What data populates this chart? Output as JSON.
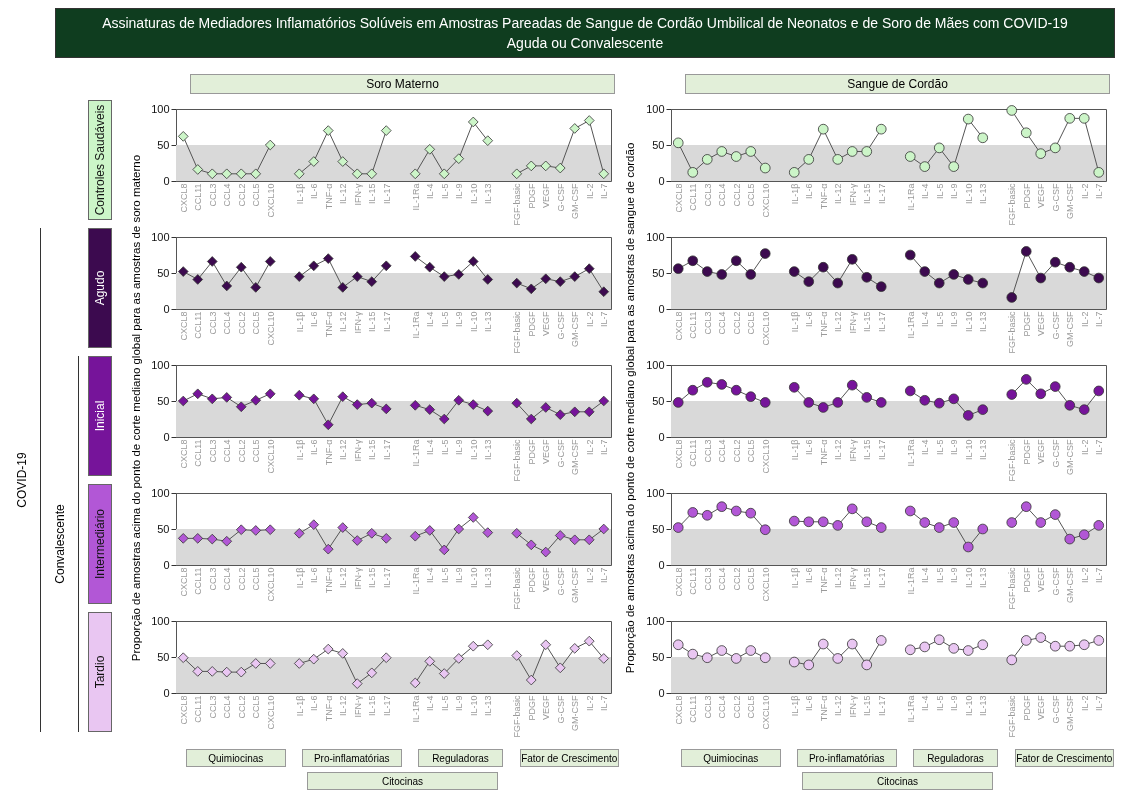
{
  "chart_data": [
    {
      "type": "line",
      "title": "Assinaturas de Mediadores Inflamatórios Solúveis em Amostras Pareadas de Sangue de Cordão Umbilical de Neonatos e de Soro de Mães com COVID-19 Aguda ou Convalescente",
      "subtitle": "Soro Materno",
      "annotations": [
        "Controles Saudáveis"
      ],
      "marker": "diamond",
      "ylim": [
        0,
        100
      ],
      "yticks": [
        0,
        50,
        100
      ],
      "bands": [
        {
          "axis": "y",
          "from": 0,
          "to": 50,
          "color": "#d9d9d9"
        }
      ],
      "categories": [
        "CXCL8",
        "CCL11",
        "CCL3",
        "CCL4",
        "CCL2",
        "CCL5",
        "CXCL10",
        null,
        "IL-1β",
        "IL-6",
        "TNF-α",
        "IL-12",
        "IFN-γ",
        "IL-15",
        "IL-17",
        null,
        "IL-1Ra",
        "IL-4",
        "IL-5",
        "IL-9",
        "IL-10",
        "IL-13",
        null,
        "FGF-basic",
        "PDGF",
        "VEGF",
        "G-CSF",
        "GM-CSF",
        "IL-2",
        "IL-7"
      ],
      "series": [
        {
          "color": "#ccf5c8",
          "values": [
            62,
            16,
            10,
            10,
            10,
            10,
            50,
            null,
            10,
            27,
            70,
            27,
            10,
            10,
            70,
            null,
            10,
            44,
            10,
            31,
            82,
            56,
            null,
            10,
            21,
            21,
            18,
            73,
            84,
            10
          ]
        }
      ]
    },
    {
      "type": "line",
      "subtitle": "Sangue de Cordão",
      "marker": "circle",
      "ylim": [
        0,
        100
      ],
      "yticks": [
        0,
        50,
        100
      ],
      "bands": [
        {
          "axis": "y",
          "from": 0,
          "to": 50,
          "color": "#d9d9d9"
        }
      ],
      "categories": [
        "CXCL8",
        "CCL11",
        "CCL3",
        "CCL4",
        "CCL2",
        "CCL5",
        "CXCL10",
        null,
        "IL-1β",
        "IL-6",
        "TNF-α",
        "IL-12",
        "IFN-γ",
        "IL-15",
        "IL-17",
        null,
        "IL-1Ra",
        "IL-4",
        "IL-5",
        "IL-9",
        "IL-10",
        "IL-13",
        null,
        "FGF-basic",
        "PDGF",
        "VEGF",
        "G-CSF",
        "GM-CSF",
        "IL-2",
        "IL-7"
      ],
      "series": [
        {
          "color": "#ccf5c8",
          "values": [
            53,
            12,
            30,
            41,
            34,
            41,
            18,
            null,
            12,
            30,
            72,
            30,
            41,
            41,
            72,
            null,
            34,
            20,
            46,
            20,
            86,
            60,
            null,
            98,
            67,
            38,
            46,
            87,
            87,
            12
          ]
        }
      ]
    },
    {
      "type": "line",
      "annotations": [
        "Agudo",
        "COVID-19"
      ],
      "marker": "diamond",
      "ylim": [
        0,
        100
      ],
      "yticks": [
        0,
        50,
        100
      ],
      "bands": [
        {
          "axis": "y",
          "from": 0,
          "to": 50,
          "color": "#d9d9d9"
        }
      ],
      "categories": [
        "CXCL8",
        "CCL11",
        "CCL3",
        "CCL4",
        "CCL2",
        "CCL5",
        "CXCL10",
        null,
        "IL-1β",
        "IL-6",
        "TNF-α",
        "IL-12",
        "IFN-γ",
        "IL-15",
        "IL-17",
        null,
        "IL-1Ra",
        "IL-4",
        "IL-5",
        "IL-9",
        "IL-10",
        "IL-13",
        null,
        "FGF-basic",
        "PDGF",
        "VEGF",
        "G-CSF",
        "GM-CSF",
        "IL-2",
        "IL-7"
      ],
      "series": [
        {
          "color": "#3c0a4f",
          "values": [
            52,
            41,
            66,
            32,
            58,
            30,
            66,
            null,
            45,
            60,
            70,
            30,
            45,
            38,
            60,
            null,
            73,
            58,
            45,
            48,
            66,
            41,
            null,
            36,
            28,
            42,
            38,
            45,
            56,
            24
          ]
        }
      ]
    },
    {
      "type": "line",
      "marker": "circle",
      "ylim": [
        0,
        100
      ],
      "yticks": [
        0,
        50,
        100
      ],
      "bands": [
        {
          "axis": "y",
          "from": 0,
          "to": 50,
          "color": "#d9d9d9"
        }
      ],
      "categories": [
        "CXCL8",
        "CCL11",
        "CCL3",
        "CCL4",
        "CCL2",
        "CCL5",
        "CXCL10",
        null,
        "IL-1β",
        "IL-6",
        "TNF-α",
        "IL-12",
        "IFN-γ",
        "IL-15",
        "IL-17",
        null,
        "IL-1Ra",
        "IL-4",
        "IL-5",
        "IL-9",
        "IL-10",
        "IL-13",
        null,
        "FGF-basic",
        "PDGF",
        "VEGF",
        "G-CSF",
        "GM-CSF",
        "IL-2",
        "IL-7"
      ],
      "series": [
        {
          "color": "#3c0a4f",
          "values": [
            56,
            67,
            52,
            48,
            67,
            48,
            77,
            null,
            52,
            38,
            58,
            36,
            69,
            44,
            31,
            null,
            75,
            52,
            36,
            48,
            41,
            36,
            null,
            16,
            80,
            43,
            65,
            58,
            52,
            43
          ]
        }
      ]
    },
    {
      "type": "line",
      "annotations": [
        "Inicial",
        "Convalescente"
      ],
      "ylabel": "Proporção de amostras acima do ponto de corte mediano global para as amostras de soro materno",
      "marker": "diamond",
      "ylim": [
        0,
        100
      ],
      "yticks": [
        0,
        50,
        100
      ],
      "bands": [
        {
          "axis": "y",
          "from": 0,
          "to": 50,
          "color": "#d9d9d9"
        }
      ],
      "categories": [
        "CXCL8",
        "CCL11",
        "CCL3",
        "CCL4",
        "CCL2",
        "CCL5",
        "CXCL10",
        null,
        "IL-1β",
        "IL-6",
        "TNF-α",
        "IL-12",
        "IFN-γ",
        "IL-15",
        "IL-17",
        null,
        "IL-1Ra",
        "IL-4",
        "IL-5",
        "IL-9",
        "IL-10",
        "IL-13",
        null,
        "FGF-basic",
        "PDGF",
        "VEGF",
        "G-CSF",
        "GM-CSF",
        "IL-2",
        "IL-7"
      ],
      "series": [
        {
          "color": "#76149a",
          "values": [
            50,
            60,
            53,
            55,
            42,
            51,
            60,
            null,
            58,
            53,
            17,
            56,
            45,
            47,
            39,
            null,
            44,
            38,
            25,
            51,
            45,
            36,
            null,
            47,
            25,
            41,
            31,
            35,
            35,
            50
          ]
        }
      ]
    },
    {
      "type": "line",
      "ylabel": "Proporção de amostras acima do ponto de corte mediano global para as amostras de sangue de cordão",
      "marker": "circle",
      "ylim": [
        0,
        100
      ],
      "yticks": [
        0,
        50,
        100
      ],
      "bands": [
        {
          "axis": "y",
          "from": 0,
          "to": 50,
          "color": "#d9d9d9"
        }
      ],
      "categories": [
        "CXCL8",
        "CCL11",
        "CCL3",
        "CCL4",
        "CCL2",
        "CCL5",
        "CXCL10",
        null,
        "IL-1β",
        "IL-6",
        "TNF-α",
        "IL-12",
        "IFN-γ",
        "IL-15",
        "IL-17",
        null,
        "IL-1Ra",
        "IL-4",
        "IL-5",
        "IL-9",
        "IL-10",
        "IL-13",
        null,
        "FGF-basic",
        "PDGF",
        "VEGF",
        "G-CSF",
        "GM-CSF",
        "IL-2",
        "IL-7"
      ],
      "series": [
        {
          "color": "#76149a",
          "values": [
            48,
            65,
            76,
            73,
            65,
            56,
            48,
            null,
            69,
            48,
            41,
            48,
            72,
            55,
            48,
            null,
            64,
            51,
            47,
            53,
            30,
            38,
            null,
            59,
            80,
            60,
            70,
            44,
            38,
            64
          ]
        }
      ]
    },
    {
      "type": "line",
      "annotations": [
        "Intermediário"
      ],
      "marker": "diamond",
      "ylim": [
        0,
        100
      ],
      "yticks": [
        0,
        50,
        100
      ],
      "bands": [
        {
          "axis": "y",
          "from": 0,
          "to": 50,
          "color": "#d9d9d9"
        }
      ],
      "categories": [
        "CXCL8",
        "CCL11",
        "CCL3",
        "CCL4",
        "CCL2",
        "CCL5",
        "CXCL10",
        null,
        "IL-1β",
        "IL-6",
        "TNF-α",
        "IL-12",
        "IFN-γ",
        "IL-15",
        "IL-17",
        null,
        "IL-1Ra",
        "IL-4",
        "IL-5",
        "IL-9",
        "IL-10",
        "IL-13",
        null,
        "FGF-basic",
        "PDGF",
        "VEGF",
        "G-CSF",
        "GM-CSF",
        "IL-2",
        "IL-7"
      ],
      "series": [
        {
          "color": "#b257d6",
          "values": [
            37,
            37,
            36,
            33,
            49,
            48,
            49,
            null,
            44,
            56,
            22,
            52,
            34,
            44,
            37,
            null,
            40,
            48,
            21,
            50,
            66,
            45,
            null,
            44,
            28,
            18,
            41,
            35,
            35,
            50
          ]
        }
      ]
    },
    {
      "type": "line",
      "marker": "circle",
      "ylim": [
        0,
        100
      ],
      "yticks": [
        0,
        50,
        100
      ],
      "bands": [
        {
          "axis": "y",
          "from": 0,
          "to": 50,
          "color": "#d9d9d9"
        }
      ],
      "categories": [
        "CXCL8",
        "CCL11",
        "CCL3",
        "CCL4",
        "CCL2",
        "CCL5",
        "CXCL10",
        null,
        "IL-1β",
        "IL-6",
        "TNF-α",
        "IL-12",
        "IFN-γ",
        "IL-15",
        "IL-17",
        null,
        "IL-1Ra",
        "IL-4",
        "IL-5",
        "IL-9",
        "IL-10",
        "IL-13",
        null,
        "FGF-basic",
        "PDGF",
        "VEGF",
        "G-CSF",
        "GM-CSF",
        "IL-2",
        "IL-7"
      ],
      "series": [
        {
          "color": "#b257d6",
          "values": [
            52,
            73,
            69,
            81,
            75,
            72,
            49,
            null,
            61,
            60,
            60,
            55,
            78,
            60,
            52,
            null,
            75,
            59,
            52,
            59,
            25,
            50,
            null,
            59,
            81,
            59,
            70,
            36,
            42,
            55
          ]
        }
      ]
    },
    {
      "type": "line",
      "annotations": [
        "Tardio",
        "Quimiocinas",
        "Pro-inflamatórias",
        "Reguladoras",
        "Fator de Crescimento",
        "Citocinas"
      ],
      "marker": "diamond",
      "ylim": [
        0,
        100
      ],
      "yticks": [
        0,
        50,
        100
      ],
      "bands": [
        {
          "axis": "y",
          "from": 0,
          "to": 50,
          "color": "#d9d9d9"
        }
      ],
      "categories": [
        "CXCL8",
        "CCL11",
        "CCL3",
        "CCL4",
        "CCL2",
        "CCL5",
        "CXCL10",
        null,
        "IL-1β",
        "IL-6",
        "TNF-α",
        "IL-12",
        "IFN-γ",
        "IL-15",
        "IL-17",
        null,
        "IL-1Ra",
        "IL-4",
        "IL-5",
        "IL-9",
        "IL-10",
        "IL-13",
        null,
        "FGF-basic",
        "PDGF",
        "VEGF",
        "G-CSF",
        "GM-CSF",
        "IL-2",
        "IL-7"
      ],
      "series": [
        {
          "color": "#e9c6f2",
          "values": [
            49,
            30,
            30,
            29,
            29,
            41,
            41,
            null,
            41,
            47,
            61,
            55,
            13,
            28,
            49,
            null,
            14,
            44,
            27,
            48,
            65,
            67,
            null,
            52,
            18,
            67,
            35,
            62,
            72,
            48
          ]
        }
      ]
    },
    {
      "type": "line",
      "annotations": [
        "Quimiocinas",
        "Pro-inflamatórias",
        "Reguladoras",
        "Fator de Crescimento",
        "Citocinas"
      ],
      "marker": "circle",
      "ylim": [
        0,
        100
      ],
      "yticks": [
        0,
        50,
        100
      ],
      "bands": [
        {
          "axis": "y",
          "from": 0,
          "to": 50,
          "color": "#d9d9d9"
        }
      ],
      "categories": [
        "CXCL8",
        "CCL11",
        "CCL3",
        "CCL4",
        "CCL2",
        "CCL5",
        "CXCL10",
        null,
        "IL-1β",
        "IL-6",
        "TNF-α",
        "IL-12",
        "IFN-γ",
        "IL-15",
        "IL-17",
        null,
        "IL-1Ra",
        "IL-4",
        "IL-5",
        "IL-9",
        "IL-10",
        "IL-13",
        null,
        "FGF-basic",
        "PDGF",
        "VEGF",
        "G-CSF",
        "GM-CSF",
        "IL-2",
        "IL-7"
      ],
      "series": [
        {
          "color": "#e9c6f2",
          "values": [
            67,
            54,
            49,
            59,
            48,
            59,
            49,
            null,
            43,
            39,
            68,
            48,
            68,
            39,
            73,
            null,
            60,
            64,
            74,
            62,
            59,
            67,
            null,
            46,
            73,
            77,
            65,
            65,
            67,
            73
          ]
        }
      ]
    }
  ]
}
